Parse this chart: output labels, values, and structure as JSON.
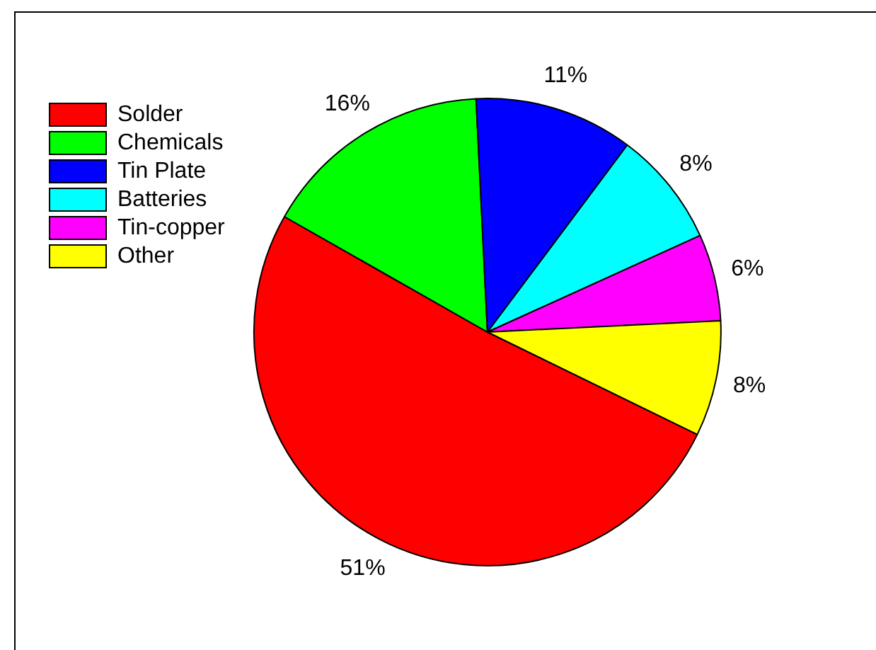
{
  "chart_data": {
    "type": "pie",
    "categories": [
      "Solder",
      "Chemicals",
      "Tin Plate",
      "Batteries",
      "Tin-copper",
      "Other"
    ],
    "values": [
      51,
      16,
      11,
      8,
      6,
      8
    ],
    "colors": [
      "#ff0000",
      "#00ff00",
      "#0000ff",
      "#00ffff",
      "#ff00ff",
      "#ffff00"
    ],
    "value_labels": [
      "51%",
      "16%",
      "11%",
      "8%",
      "6%",
      "8%"
    ],
    "legend": "top left"
  }
}
